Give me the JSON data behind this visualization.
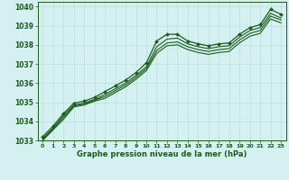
{
  "x": [
    0,
    1,
    2,
    3,
    4,
    5,
    6,
    7,
    8,
    9,
    10,
    11,
    12,
    13,
    14,
    15,
    16,
    17,
    18,
    19,
    20,
    21,
    22,
    23
  ],
  "line1": [
    1033.2,
    1033.75,
    1034.4,
    1034.95,
    1035.05,
    1035.25,
    1035.55,
    1035.85,
    1036.15,
    1036.55,
    1037.05,
    1038.2,
    1038.55,
    1038.55,
    1038.2,
    1038.05,
    1037.95,
    1038.05,
    1038.1,
    1038.55,
    1038.9,
    1039.05,
    1039.85,
    1039.6
  ],
  "line2": [
    1033.1,
    1033.65,
    1034.3,
    1034.85,
    1034.95,
    1035.15,
    1035.4,
    1035.7,
    1036.0,
    1036.4,
    1036.85,
    1037.9,
    1038.3,
    1038.35,
    1038.05,
    1037.9,
    1037.8,
    1037.9,
    1037.95,
    1038.4,
    1038.75,
    1038.9,
    1039.65,
    1039.4
  ],
  "line3": [
    1033.05,
    1033.6,
    1034.2,
    1034.8,
    1034.9,
    1035.1,
    1035.3,
    1035.6,
    1035.9,
    1036.3,
    1036.75,
    1037.7,
    1038.1,
    1038.15,
    1037.9,
    1037.75,
    1037.65,
    1037.75,
    1037.8,
    1038.25,
    1038.6,
    1038.75,
    1039.5,
    1039.3
  ],
  "line4": [
    1033.0,
    1033.55,
    1034.1,
    1034.75,
    1034.85,
    1035.05,
    1035.2,
    1035.5,
    1035.8,
    1036.2,
    1036.65,
    1037.55,
    1037.95,
    1038.0,
    1037.75,
    1037.6,
    1037.5,
    1037.6,
    1037.65,
    1038.1,
    1038.45,
    1038.6,
    1039.35,
    1039.15
  ],
  "line_color": "#1a5c1a",
  "bg_color": "#d4f0f0",
  "grid_color": "#b8dede",
  "tick_label_color": "#1a5c1a",
  "xlabel": "Graphe pression niveau de la mer (hPa)",
  "ylim": [
    1033.0,
    1040.25
  ],
  "yticks": [
    1033,
    1034,
    1035,
    1036,
    1037,
    1038,
    1039,
    1040
  ],
  "xticks": [
    0,
    1,
    2,
    3,
    4,
    5,
    6,
    7,
    8,
    9,
    10,
    11,
    12,
    13,
    14,
    15,
    16,
    17,
    18,
    19,
    20,
    21,
    22,
    23
  ]
}
